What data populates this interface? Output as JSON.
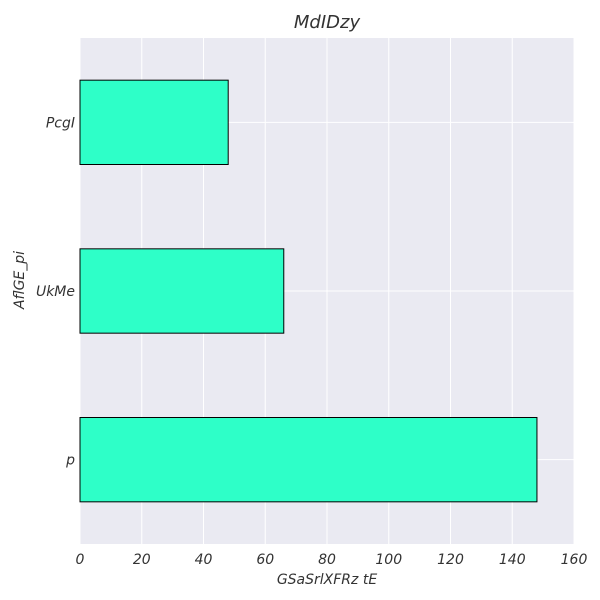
{
  "chart_data": {
    "type": "bar",
    "orientation": "horizontal",
    "title": "MdIDzy",
    "xlabel": "GSaSrlXFRz tE",
    "ylabel": "AflGE_pi",
    "categories": [
      "PcgI",
      "UkMe",
      "p"
    ],
    "values": [
      48,
      66,
      148
    ],
    "xlim": [
      0,
      160
    ],
    "xticks": [
      "0",
      "20",
      "40",
      "60",
      "80",
      "100",
      "120",
      "140",
      "160"
    ],
    "grid": true,
    "legend": "none",
    "colors": {
      "bar_fill": "#2effc8",
      "bar_edge": "#000000",
      "plot_background": "#eaeaf2",
      "grid": "#ffffff",
      "text": "#333333"
    }
  }
}
